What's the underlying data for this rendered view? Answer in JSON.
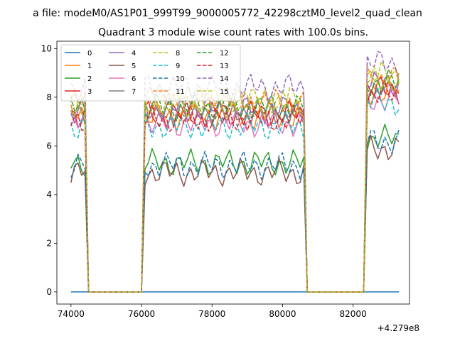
{
  "chart_data": {
    "type": "line",
    "suptitle": "a file: modeM0/AS1P01_999T99_9000005772_42298cztM0_level2_quad_clean",
    "title": "Quadrant 3 module wise count rates with 100.0s bins.",
    "xlabel": "",
    "ylabel": "",
    "x_offset_label": "+4.279e8",
    "x_ticks": [
      74000,
      76000,
      78000,
      80000,
      82000
    ],
    "y_ticks": [
      0,
      2,
      4,
      6,
      8,
      10
    ],
    "xlim": [
      73600,
      83600
    ],
    "ylim": [
      -0.5,
      10.3
    ],
    "grid": false,
    "legend": {
      "placement": "top-left",
      "columns": 4
    },
    "segments": [
      {
        "start": 74000,
        "end": 74400
      },
      {
        "start": 76100,
        "end": 80600
      },
      {
        "start": 82400,
        "end": 83300
      }
    ],
    "gap_points": [
      74500,
      76000,
      80700,
      82300
    ],
    "series": [
      {
        "name": "0",
        "color": "#1f77b4",
        "dash": "solid",
        "level": 0.0
      },
      {
        "name": "1",
        "color": "#ff7f0e",
        "dash": "solid",
        "level": 7.2
      },
      {
        "name": "2",
        "color": "#2ca02c",
        "dash": "solid",
        "level": 5.3
      },
      {
        "name": "3",
        "color": "#d62728",
        "dash": "solid",
        "level": 7.3
      },
      {
        "name": "4",
        "color": "#9467bd",
        "dash": "solid",
        "level": 7.5
      },
      {
        "name": "5",
        "color": "#8c564b",
        "dash": "solid",
        "level": 4.9
      },
      {
        "name": "6",
        "color": "#e377c2",
        "dash": "solid",
        "level": 6.9
      },
      {
        "name": "7",
        "color": "#7f7f7f",
        "dash": "solid",
        "level": 7.4
      },
      {
        "name": "8",
        "color": "#bcbd22",
        "dash": "dashed",
        "level": 7.9
      },
      {
        "name": "9",
        "color": "#17becf",
        "dash": "dashed",
        "level": 6.8
      },
      {
        "name": "10",
        "color": "#1f77b4",
        "dash": "dashed",
        "level": 5.2
      },
      {
        "name": "11",
        "color": "#ff7f0e",
        "dash": "dashed",
        "level": 7.8
      },
      {
        "name": "12",
        "color": "#2ca02c",
        "dash": "dashed",
        "level": 7.6
      },
      {
        "name": "13",
        "color": "#d62728",
        "dash": "dashed",
        "level": 7.1
      },
      {
        "name": "14",
        "color": "#9467bd",
        "dash": "dashed",
        "level": 8.4
      },
      {
        "name": "15",
        "color": "#bcbd22",
        "dash": "dashed",
        "level": 7.7
      }
    ]
  }
}
